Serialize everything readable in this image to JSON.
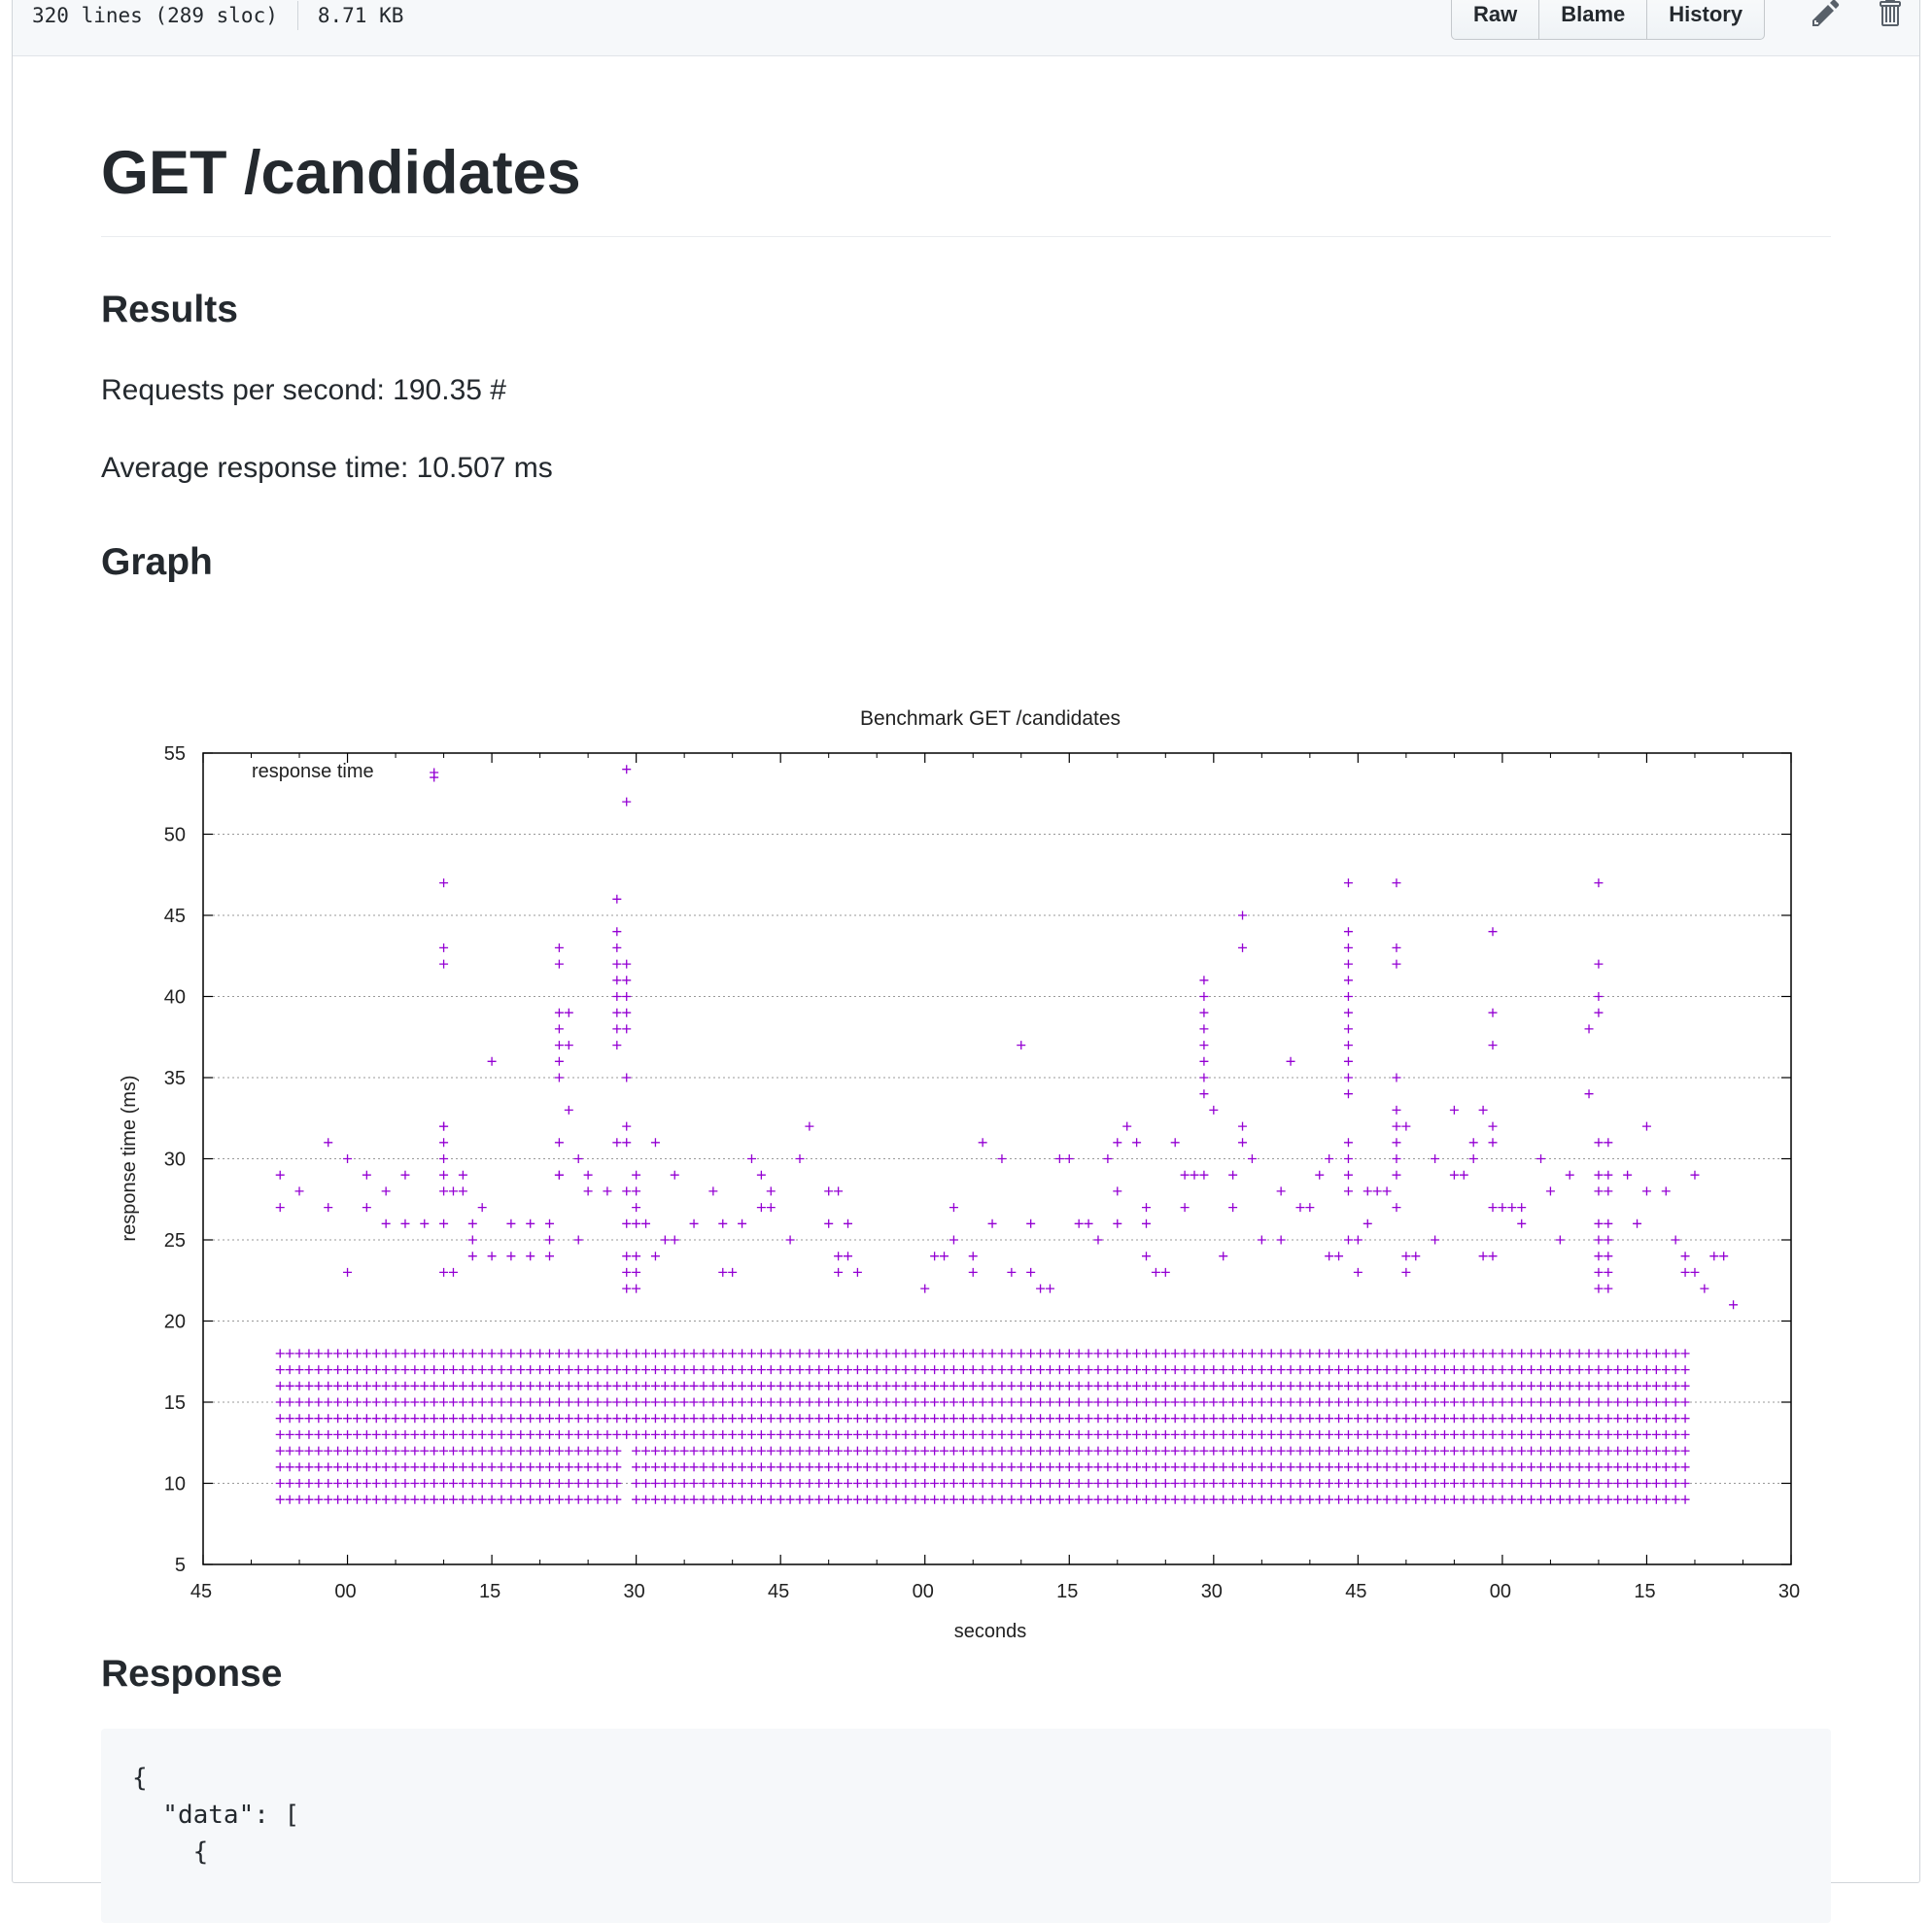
{
  "file_header": {
    "lines": "320 lines (289 sloc)",
    "size": "8.71 KB",
    "buttons": {
      "raw": "Raw",
      "blame": "Blame",
      "history": "History"
    },
    "icons": [
      "pencil-icon",
      "trash-icon"
    ]
  },
  "content": {
    "title": "GET /candidates",
    "results_heading": "Results",
    "requests_per_second": "Requests per second: 190.35 #",
    "avg_response_time": "Average response time: 10.507 ms",
    "graph_heading": "Graph",
    "response_heading": "Response",
    "code_lines": [
      "{",
      "  \"data\": [",
      "    {"
    ]
  },
  "chart_data": {
    "type": "scatter",
    "title": "Benchmark GET /candidates",
    "xlabel": "seconds",
    "ylabel": "response time (ms)",
    "legend": "response time",
    "legend_position": "top-left",
    "marker": "+",
    "color": "#9400d3",
    "ylim": [
      5,
      55
    ],
    "y_ticks": [
      5,
      10,
      15,
      20,
      25,
      30,
      35,
      40,
      45,
      50,
      55
    ],
    "x_tick_labels": [
      "45",
      "00",
      "15",
      "30",
      "45",
      "00",
      "15",
      "30",
      "45",
      "00",
      "15",
      "30"
    ],
    "xlim_seconds": [
      0,
      165
    ],
    "grid": "horizontal dotted",
    "dense_band": {
      "x_range_seconds": [
        8,
        154
      ],
      "y_range": [
        9,
        18
      ],
      "note": "continuous band of points at 1 ms steps"
    },
    "points": [
      [
        8,
        27
      ],
      [
        8,
        29
      ],
      [
        10,
        28
      ],
      [
        13,
        27
      ],
      [
        13,
        31
      ],
      [
        15,
        23
      ],
      [
        15,
        30
      ],
      [
        17,
        27
      ],
      [
        17,
        29
      ],
      [
        19,
        26
      ],
      [
        19,
        28
      ],
      [
        21,
        26
      ],
      [
        21,
        29
      ],
      [
        23,
        26
      ],
      [
        25,
        26
      ],
      [
        25,
        32
      ],
      [
        27,
        28
      ],
      [
        27,
        29
      ],
      [
        28,
        26
      ],
      [
        29,
        27
      ],
      [
        24,
        53.5
      ],
      [
        25,
        47
      ],
      [
        25,
        43
      ],
      [
        25,
        42
      ],
      [
        25,
        32
      ],
      [
        25,
        31
      ],
      [
        25,
        30
      ],
      [
        25,
        29
      ],
      [
        25,
        28
      ],
      [
        26,
        28
      ],
      [
        26,
        23
      ],
      [
        25,
        23
      ],
      [
        28,
        25
      ],
      [
        28,
        24
      ],
      [
        30,
        36
      ],
      [
        30,
        24
      ],
      [
        32,
        24
      ],
      [
        32,
        26
      ],
      [
        34,
        24
      ],
      [
        34,
        26
      ],
      [
        36,
        24
      ],
      [
        36,
        26
      ],
      [
        37,
        29
      ],
      [
        37,
        43
      ],
      [
        37,
        42
      ],
      [
        37,
        39
      ],
      [
        38,
        39
      ],
      [
        37,
        38
      ],
      [
        37,
        37
      ],
      [
        38,
        37
      ],
      [
        37,
        36
      ],
      [
        37,
        35
      ],
      [
        38,
        33
      ],
      [
        37,
        31
      ],
      [
        37,
        29
      ],
      [
        39,
        30
      ],
      [
        40,
        29
      ],
      [
        40,
        28
      ],
      [
        42,
        28
      ],
      [
        39,
        25
      ],
      [
        36,
        25
      ],
      [
        43,
        46
      ],
      [
        43,
        44
      ],
      [
        43,
        43
      ],
      [
        43,
        42
      ],
      [
        44,
        42
      ],
      [
        43,
        41
      ],
      [
        44,
        41
      ],
      [
        43,
        40
      ],
      [
        44,
        40
      ],
      [
        43,
        39
      ],
      [
        44,
        39
      ],
      [
        43,
        38
      ],
      [
        44,
        38
      ],
      [
        43,
        37
      ],
      [
        44,
        54
      ],
      [
        44,
        52
      ],
      [
        44,
        35
      ],
      [
        44,
        32
      ],
      [
        43,
        31
      ],
      [
        44,
        31
      ],
      [
        44,
        28
      ],
      [
        45,
        28
      ],
      [
        45,
        29
      ],
      [
        44,
        26
      ],
      [
        45,
        26
      ],
      [
        46,
        26
      ],
      [
        45,
        27
      ],
      [
        44,
        24
      ],
      [
        45,
        24
      ],
      [
        44,
        23
      ],
      [
        45,
        23
      ],
      [
        44,
        22
      ],
      [
        45,
        22
      ],
      [
        47,
        31
      ],
      [
        47,
        24
      ],
      [
        48,
        25
      ],
      [
        49,
        29
      ],
      [
        49,
        25
      ],
      [
        51,
        26
      ],
      [
        53,
        28
      ],
      [
        54,
        26
      ],
      [
        54,
        23
      ],
      [
        55,
        23
      ],
      [
        56,
        26
      ],
      [
        57,
        30
      ],
      [
        58,
        27
      ],
      [
        58,
        29
      ],
      [
        59,
        28
      ],
      [
        59,
        27
      ],
      [
        61,
        25
      ],
      [
        62,
        30
      ],
      [
        63,
        32
      ],
      [
        65,
        28
      ],
      [
        66,
        28
      ],
      [
        65,
        26
      ],
      [
        67,
        26
      ],
      [
        66,
        24
      ],
      [
        67,
        24
      ],
      [
        66,
        23
      ],
      [
        68,
        23
      ],
      [
        75,
        22
      ],
      [
        76,
        24
      ],
      [
        77,
        24
      ],
      [
        78,
        25
      ],
      [
        78,
        27
      ],
      [
        80,
        23
      ],
      [
        80,
        24
      ],
      [
        81,
        31
      ],
      [
        82,
        26
      ],
      [
        83,
        30
      ],
      [
        84,
        23
      ],
      [
        85,
        37
      ],
      [
        86,
        26
      ],
      [
        86,
        23
      ],
      [
        87,
        22
      ],
      [
        88,
        22
      ],
      [
        89,
        30
      ],
      [
        90,
        30
      ],
      [
        91,
        26
      ],
      [
        92,
        26
      ],
      [
        93,
        25
      ],
      [
        94,
        30
      ],
      [
        95,
        31
      ],
      [
        96,
        32
      ],
      [
        97,
        31
      ],
      [
        95,
        28
      ],
      [
        95,
        26
      ],
      [
        98,
        26
      ],
      [
        98,
        24
      ],
      [
        99,
        23
      ],
      [
        100,
        23
      ],
      [
        98,
        27
      ],
      [
        101,
        31
      ],
      [
        102,
        29
      ],
      [
        103,
        29
      ],
      [
        104,
        29
      ],
      [
        102,
        27
      ],
      [
        104,
        41
      ],
      [
        104,
        40
      ],
      [
        104,
        39
      ],
      [
        104,
        38
      ],
      [
        104,
        37
      ],
      [
        104,
        36
      ],
      [
        104,
        35
      ],
      [
        104,
        34
      ],
      [
        105,
        33
      ],
      [
        106,
        24
      ],
      [
        107,
        27
      ],
      [
        107,
        29
      ],
      [
        108,
        45
      ],
      [
        108,
        43
      ],
      [
        108,
        32
      ],
      [
        108,
        31
      ],
      [
        109,
        30
      ],
      [
        110,
        25
      ],
      [
        112,
        25
      ],
      [
        112,
        28
      ],
      [
        113,
        36
      ],
      [
        114,
        27
      ],
      [
        115,
        27
      ],
      [
        116,
        29
      ],
      [
        117,
        30
      ],
      [
        117,
        24
      ],
      [
        118,
        24
      ],
      [
        119,
        47
      ],
      [
        119,
        44
      ],
      [
        119,
        43
      ],
      [
        119,
        42
      ],
      [
        119,
        41
      ],
      [
        119,
        40
      ],
      [
        119,
        39
      ],
      [
        119,
        38
      ],
      [
        119,
        37
      ],
      [
        119,
        36
      ],
      [
        119,
        35
      ],
      [
        119,
        34
      ],
      [
        119,
        31
      ],
      [
        119,
        30
      ],
      [
        119,
        29
      ],
      [
        119,
        28
      ],
      [
        119,
        25
      ],
      [
        120,
        25
      ],
      [
        120,
        23
      ],
      [
        121,
        26
      ],
      [
        121,
        28
      ],
      [
        122,
        28
      ],
      [
        123,
        28
      ],
      [
        124,
        47
      ],
      [
        124,
        43
      ],
      [
        124,
        42
      ],
      [
        124,
        35
      ],
      [
        124,
        33
      ],
      [
        124,
        32
      ],
      [
        125,
        32
      ],
      [
        124,
        31
      ],
      [
        124,
        30
      ],
      [
        124,
        29
      ],
      [
        124,
        27
      ],
      [
        125,
        24
      ],
      [
        126,
        24
      ],
      [
        125,
        23
      ],
      [
        128,
        30
      ],
      [
        128,
        25
      ],
      [
        130,
        33
      ],
      [
        130,
        29
      ],
      [
        131,
        29
      ],
      [
        132,
        30
      ],
      [
        132,
        31
      ],
      [
        133,
        33
      ],
      [
        134,
        44
      ],
      [
        134,
        39
      ],
      [
        134,
        37
      ],
      [
        134,
        32
      ],
      [
        134,
        31
      ],
      [
        134,
        27
      ],
      [
        135,
        27
      ],
      [
        136,
        27
      ],
      [
        133,
        24
      ],
      [
        134,
        24
      ],
      [
        137,
        26
      ],
      [
        137,
        27
      ],
      [
        139,
        30
      ],
      [
        140,
        28
      ],
      [
        141,
        25
      ],
      [
        142,
        29
      ],
      [
        144,
        38
      ],
      [
        144,
        34
      ],
      [
        145,
        47
      ],
      [
        145,
        42
      ],
      [
        145,
        40
      ],
      [
        145,
        39
      ],
      [
        145,
        31
      ],
      [
        146,
        31
      ],
      [
        145,
        29
      ],
      [
        146,
        29
      ],
      [
        145,
        28
      ],
      [
        146,
        28
      ],
      [
        145,
        26
      ],
      [
        146,
        26
      ],
      [
        145,
        25
      ],
      [
        146,
        25
      ],
      [
        145,
        24
      ],
      [
        146,
        24
      ],
      [
        145,
        23
      ],
      [
        146,
        23
      ],
      [
        145,
        22
      ],
      [
        146,
        22
      ],
      [
        148,
        29
      ],
      [
        149,
        26
      ],
      [
        150,
        28
      ],
      [
        150,
        32
      ],
      [
        152,
        28
      ],
      [
        153,
        25
      ],
      [
        154,
        24
      ],
      [
        155,
        29
      ],
      [
        154,
        23
      ],
      [
        155,
        23
      ],
      [
        156,
        22
      ],
      [
        157,
        24
      ],
      [
        158,
        24
      ],
      [
        159,
        21
      ]
    ]
  }
}
